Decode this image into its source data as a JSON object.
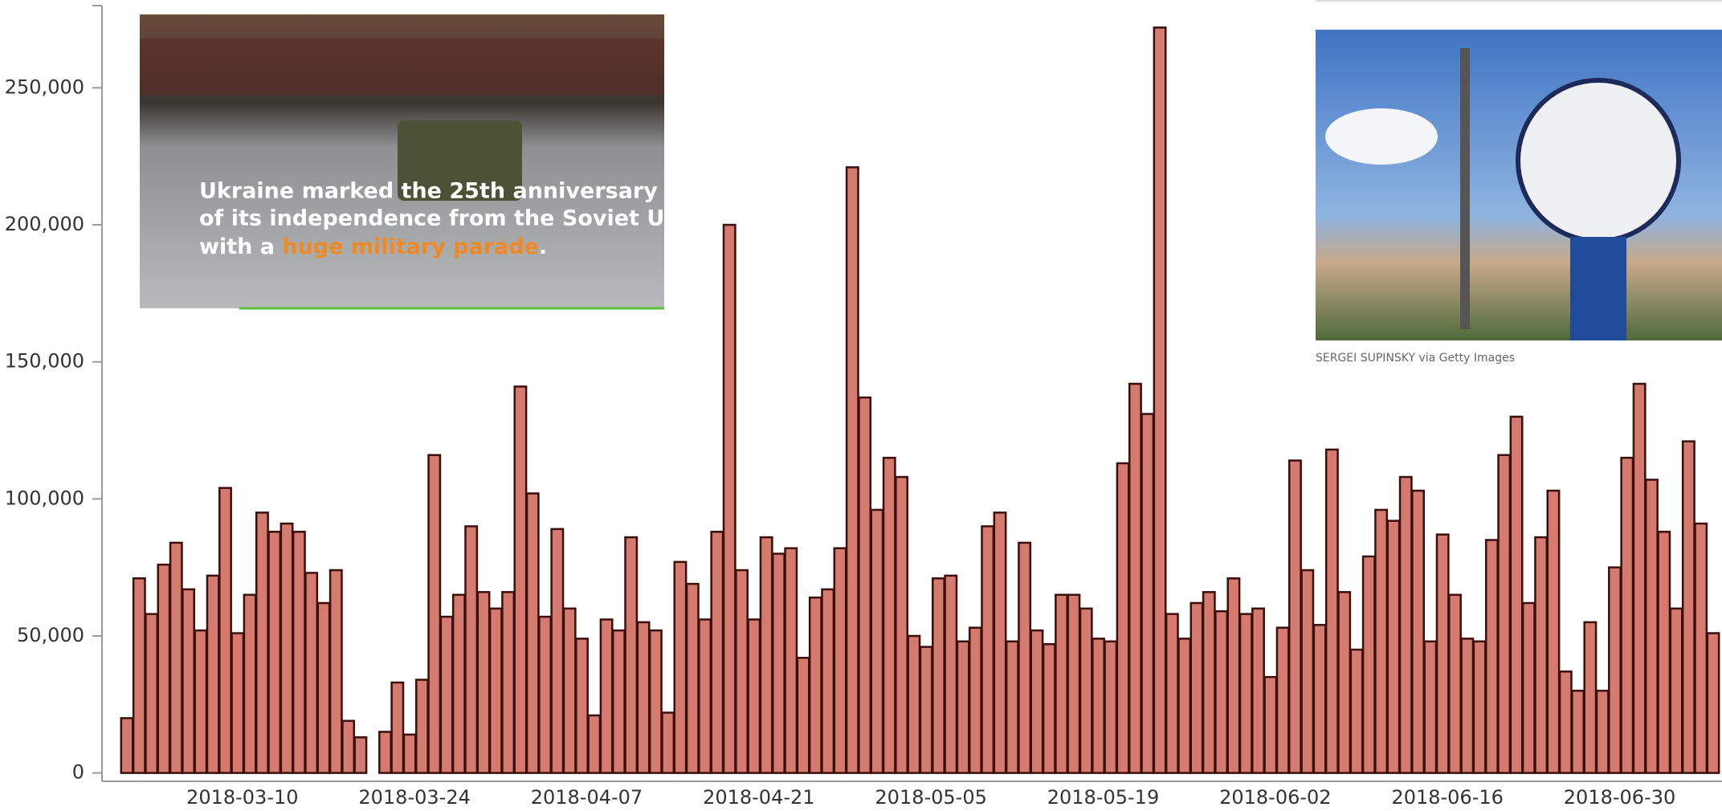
{
  "chart_data": {
    "type": "bar",
    "categories": [
      null,
      null,
      null,
      null,
      null,
      null,
      null,
      null,
      null,
      "2018-03-10",
      null,
      null,
      null,
      null,
      null,
      null,
      null,
      null,
      null,
      null,
      null,
      null,
      null,
      "2018-03-24",
      null,
      null,
      null,
      null,
      null,
      null,
      null,
      null,
      null,
      null,
      null,
      null,
      null,
      "2018-04-07",
      null,
      null,
      null,
      null,
      null,
      null,
      null,
      null,
      null,
      null,
      null,
      null,
      null,
      "2018-04-21",
      null,
      null,
      null,
      null,
      null,
      null,
      null,
      null,
      null,
      null,
      null,
      null,
      null,
      "2018-05-05",
      null,
      null,
      null,
      null,
      null,
      null,
      null,
      null,
      null,
      null,
      null,
      null,
      null,
      "2018-05-19",
      null,
      null,
      null,
      null,
      null,
      null,
      null,
      null,
      null,
      null,
      null,
      null,
      null,
      "2018-06-02",
      null,
      null,
      null,
      null,
      null,
      null,
      null,
      null,
      null,
      null,
      null,
      null,
      null,
      "2018-06-16",
      null,
      null,
      null,
      null,
      null,
      null,
      null,
      null,
      null,
      null,
      null,
      null,
      null,
      "2018-06-30",
      null,
      null,
      null,
      null,
      null,
      null,
      null,
      null
    ],
    "values": [
      20000,
      71000,
      58000,
      76000,
      84000,
      67000,
      52000,
      72000,
      104000,
      51000,
      65000,
      95000,
      88000,
      91000,
      88000,
      73000,
      62000,
      74000,
      19000,
      13000,
      0,
      15000,
      33000,
      14000,
      34000,
      116000,
      57000,
      65000,
      90000,
      66000,
      60000,
      66000,
      141000,
      102000,
      57000,
      89000,
      60000,
      49000,
      21000,
      56000,
      52000,
      86000,
      55000,
      52000,
      22000,
      77000,
      69000,
      56000,
      88000,
      200000,
      74000,
      56000,
      86000,
      80000,
      82000,
      42000,
      64000,
      67000,
      82000,
      221000,
      137000,
      96000,
      115000,
      108000,
      50000,
      46000,
      71000,
      72000,
      48000,
      53000,
      90000,
      95000,
      48000,
      84000,
      52000,
      47000,
      65000,
      65000,
      60000,
      49000,
      48000,
      113000,
      142000,
      131000,
      272000,
      58000,
      49000,
      62000,
      66000,
      59000,
      71000,
      58000,
      60000,
      35000,
      53000,
      114000,
      74000,
      54000,
      118000,
      66000,
      45000,
      79000,
      96000,
      92000,
      108000,
      103000,
      48000,
      87000,
      65000,
      49000,
      48000,
      85000,
      116000,
      130000,
      62000,
      86000,
      103000,
      37000,
      30000,
      55000,
      30000,
      75000,
      115000,
      142000,
      107000,
      88000,
      60000,
      121000,
      91000,
      51000
    ],
    "color": "#d47a6e",
    "ylim": [
      0,
      280000
    ],
    "yticks": [
      {
        "value": 0,
        "label": "0"
      },
      {
        "value": 50000,
        "label": "50,000"
      },
      {
        "value": 100000,
        "label": "100,000"
      },
      {
        "value": 150000,
        "label": "150,000"
      },
      {
        "value": 200000,
        "label": "200,000"
      },
      {
        "value": 250000,
        "label": "250,000"
      }
    ],
    "grid": false
  },
  "overlay": {
    "video": {
      "line1": "Ukraine marked the 25th anniversary",
      "line2": "of its independence from the Soviet Union",
      "line3_start": "with a",
      "line3_highlight": "huge military parade",
      "line3_end": "."
    },
    "photo": {
      "credit": "SERGEI SUPINSKY via Getty Images"
    }
  }
}
